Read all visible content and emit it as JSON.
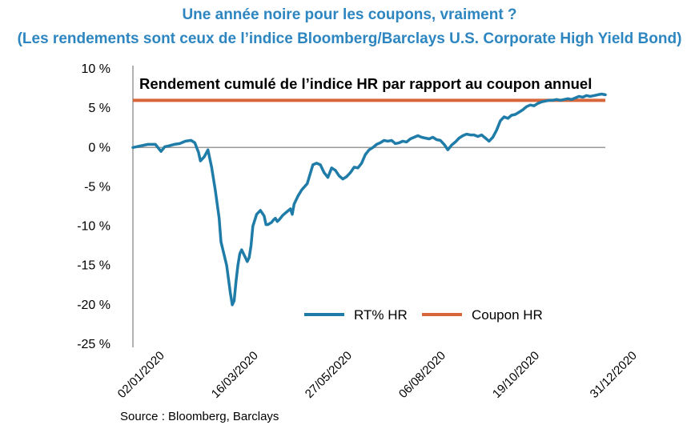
{
  "header": {
    "title": "Une année noire pour les coupons, vraiment ?",
    "subtitle": "(Les rendements sont ceux de l’indice Bloomberg/Barclays U.S. Corporate High Yield Bond)"
  },
  "footer": {
    "source": "Source : Bloomberg, Barclays"
  },
  "chart_data": {
    "type": "line",
    "title": "Rendement cumulé de l’indice HR par rapport au coupon annuel",
    "ylim": [
      -25,
      10
    ],
    "yticks": [
      10,
      5,
      0,
      -5,
      -10,
      -15,
      -20,
      -25
    ],
    "ytick_labels": [
      "10 %",
      "5 %",
      "0 %",
      "-5 %",
      "-10 %",
      "-15 %",
      "-20 %",
      "-25 %"
    ],
    "x_range": [
      0,
      252
    ],
    "xticks": [
      0,
      50,
      100,
      150,
      200,
      252
    ],
    "xtick_labels": [
      "02/01/2020",
      "16/03/2020",
      "27/05/2020",
      "06/08/2020",
      "19/10/2020",
      "31/12/2020"
    ],
    "legend": [
      "RT% HR",
      "Coupon HR"
    ],
    "legend_position": "bottom-right",
    "colors": {
      "rt": "#1f7ca8",
      "coupon": "#d9663a",
      "axis": "#999999",
      "title": "#2e86c1"
    },
    "series": [
      {
        "name": "RT% HR",
        "x": [
          0,
          4,
          8,
          12,
          15,
          17,
          19,
          22,
          25,
          28,
          31,
          33,
          35,
          36,
          38,
          40,
          42,
          44,
          46,
          47,
          48,
          50,
          52,
          53,
          54,
          55,
          56,
          57,
          58,
          60,
          61,
          62,
          63,
          64,
          66,
          68,
          70,
          71,
          72,
          74,
          75,
          76,
          77,
          78,
          80,
          82,
          84,
          85,
          86,
          88,
          90,
          93,
          95,
          96,
          98,
          100,
          102,
          104,
          106,
          108,
          110,
          112,
          114,
          116,
          118,
          120,
          122,
          124,
          126,
          128,
          130,
          132,
          134,
          136,
          138,
          140,
          142,
          144,
          146,
          148,
          150,
          152,
          154,
          156,
          158,
          160,
          162,
          164,
          166,
          168,
          170,
          172,
          174,
          176,
          178,
          180,
          182,
          184,
          186,
          188,
          190,
          192,
          194,
          196,
          198,
          200,
          202,
          204,
          206,
          208,
          210,
          212,
          214,
          216,
          218,
          220,
          222,
          224,
          226,
          228,
          230,
          232,
          234,
          236,
          238,
          240,
          242,
          244,
          246,
          248,
          250,
          252
        ],
        "values": [
          0,
          0.2,
          0.4,
          0.4,
          -0.5,
          0.1,
          0.2,
          0.4,
          0.5,
          0.8,
          0.9,
          0.6,
          -0.6,
          -1.7,
          -1.2,
          -0.3,
          -2.5,
          -5.5,
          -9,
          -12,
          -13,
          -15,
          -18.5,
          -20,
          -19.5,
          -17,
          -15,
          -13.5,
          -13,
          -14,
          -14.5,
          -14,
          -12.5,
          -10,
          -8.5,
          -8,
          -8.7,
          -9.8,
          -9.8,
          -9.5,
          -9.2,
          -9,
          -9.4,
          -9.2,
          -8.6,
          -8.2,
          -7.8,
          -8.5,
          -7.2,
          -6.2,
          -5.4,
          -4.6,
          -3,
          -2.2,
          -2,
          -2.2,
          -3.2,
          -3.8,
          -2.6,
          -2.9,
          -3.6,
          -4,
          -3.7,
          -3.2,
          -2.5,
          -2.6,
          -2,
          -0.9,
          -0.3,
          0,
          0.4,
          0.6,
          0.9,
          0.8,
          0.9,
          0.5,
          0.6,
          0.8,
          0.7,
          1.1,
          1.3,
          1.5,
          1.3,
          1.2,
          1.1,
          1.3,
          1.0,
          0.9,
          0.4,
          -0.3,
          0.3,
          0.7,
          1.2,
          1.5,
          1.7,
          1.6,
          1.6,
          1.4,
          1.6,
          1.2,
          0.8,
          1.3,
          2.2,
          3.4,
          3.9,
          3.7,
          4.1,
          4.2,
          4.5,
          4.8,
          5.2,
          5.4,
          5.3,
          5.6,
          5.8,
          5.9,
          6.0,
          6.0,
          6.1,
          6.0,
          6.1,
          6.2,
          6.1,
          6.3,
          6.5,
          6.4,
          6.6,
          6.5,
          6.6,
          6.7,
          6.8,
          6.7
        ]
      },
      {
        "name": "Coupon HR",
        "x": [
          0,
          252
        ],
        "values": [
          6,
          6
        ]
      }
    ]
  }
}
